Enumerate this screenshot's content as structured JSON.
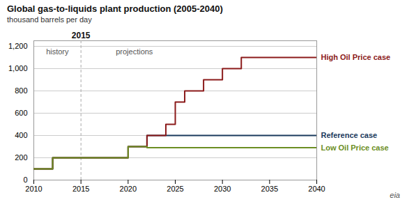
{
  "chart_data": {
    "type": "line",
    "title": "Global gas-to-liquids plant production (2005-2040)",
    "ylabel": "thousand barrels per day",
    "xlim": [
      2010,
      2040
    ],
    "xticks": [
      2010,
      2015,
      2020,
      2025,
      2030,
      2035,
      2040
    ],
    "ylim": [
      0,
      1250
    ],
    "yticks": [
      0,
      200,
      400,
      600,
      800,
      {
        "value": 1000,
        "label": "1,000"
      },
      {
        "value": 1200,
        "label": "1,200"
      }
    ],
    "grid": true,
    "divider": {
      "x": 2015,
      "label": "2015"
    },
    "annotations": [
      "history",
      "projections"
    ],
    "caption": "eia",
    "series": [
      {
        "name": "Reference case",
        "color": "#1a3a5c",
        "x": [
          2010,
          2012,
          2012,
          2015,
          2020,
          2020,
          2022,
          2022,
          2025,
          2040
        ],
        "values": [
          100,
          100,
          200,
          200,
          200,
          300,
          300,
          400,
          400,
          400
        ]
      },
      {
        "name": "High Oil Price case",
        "color": "#8b1a1a",
        "x": [
          2010,
          2012,
          2012,
          2015,
          2020,
          2020,
          2022,
          2022,
          2024,
          2024,
          2025,
          2025,
          2026,
          2026,
          2028,
          2028,
          2030,
          2030,
          2032,
          2032,
          2040
        ],
        "values": [
          100,
          100,
          200,
          200,
          200,
          300,
          300,
          400,
          400,
          500,
          500,
          700,
          700,
          800,
          800,
          900,
          900,
          1000,
          1000,
          1100,
          1100
        ]
      },
      {
        "name": "Low Oil Price case",
        "color": "#6b8e23",
        "x": [
          2010,
          2012,
          2012,
          2015,
          2020,
          2020,
          2022,
          2022,
          2025,
          2040
        ],
        "values": [
          100,
          100,
          200,
          200,
          200,
          300,
          300,
          290,
          290,
          290
        ]
      }
    ]
  }
}
